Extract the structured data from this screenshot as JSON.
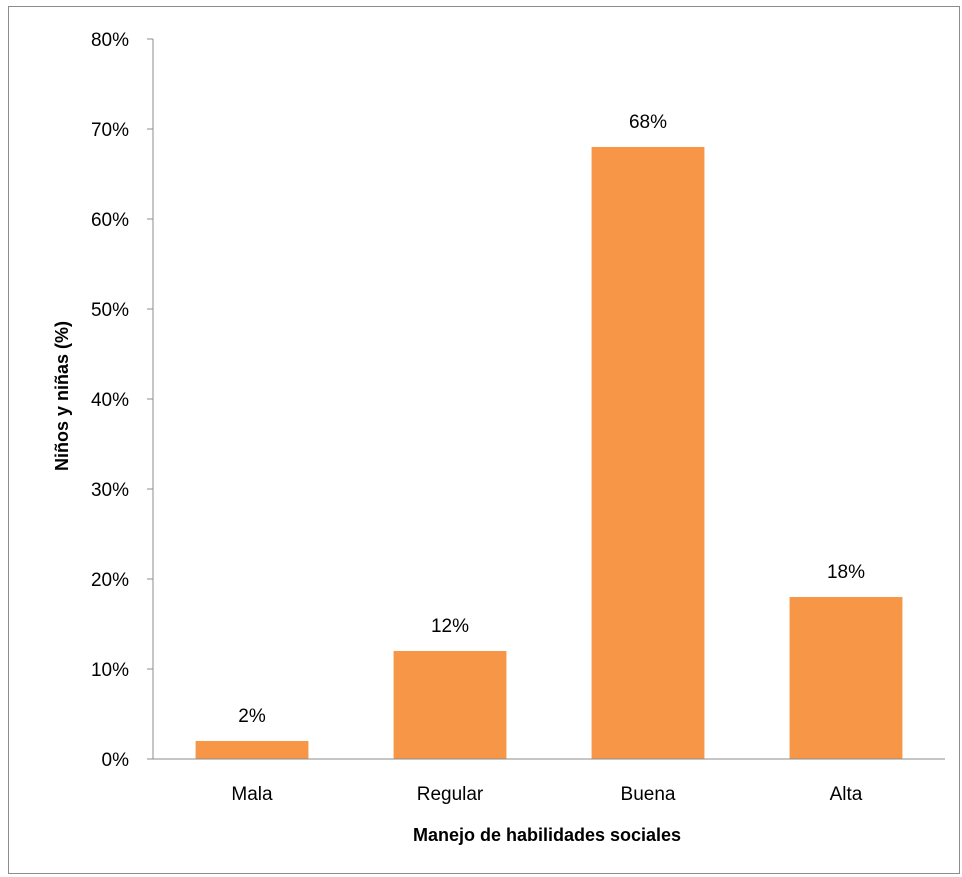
{
  "chart_data": {
    "type": "bar",
    "title": "",
    "xlabel": "Manejo de habilidades sociales",
    "ylabel": "Niños y niñas (%)",
    "categories": [
      "Mala",
      "Regular",
      "Buena",
      "Alta"
    ],
    "values": [
      2,
      12,
      68,
      18
    ],
    "data_labels": [
      "2%",
      "12%",
      "68%",
      "18%"
    ],
    "ylim": [
      0,
      80
    ],
    "y_ticks": [
      0,
      10,
      20,
      30,
      40,
      50,
      60,
      70,
      80
    ],
    "y_tick_labels": [
      "0%",
      "10%",
      "20%",
      "30%",
      "40%",
      "50%",
      "60%",
      "70%",
      "80%"
    ],
    "grid": false,
    "legend": "none",
    "bar_color": "#F79646"
  }
}
